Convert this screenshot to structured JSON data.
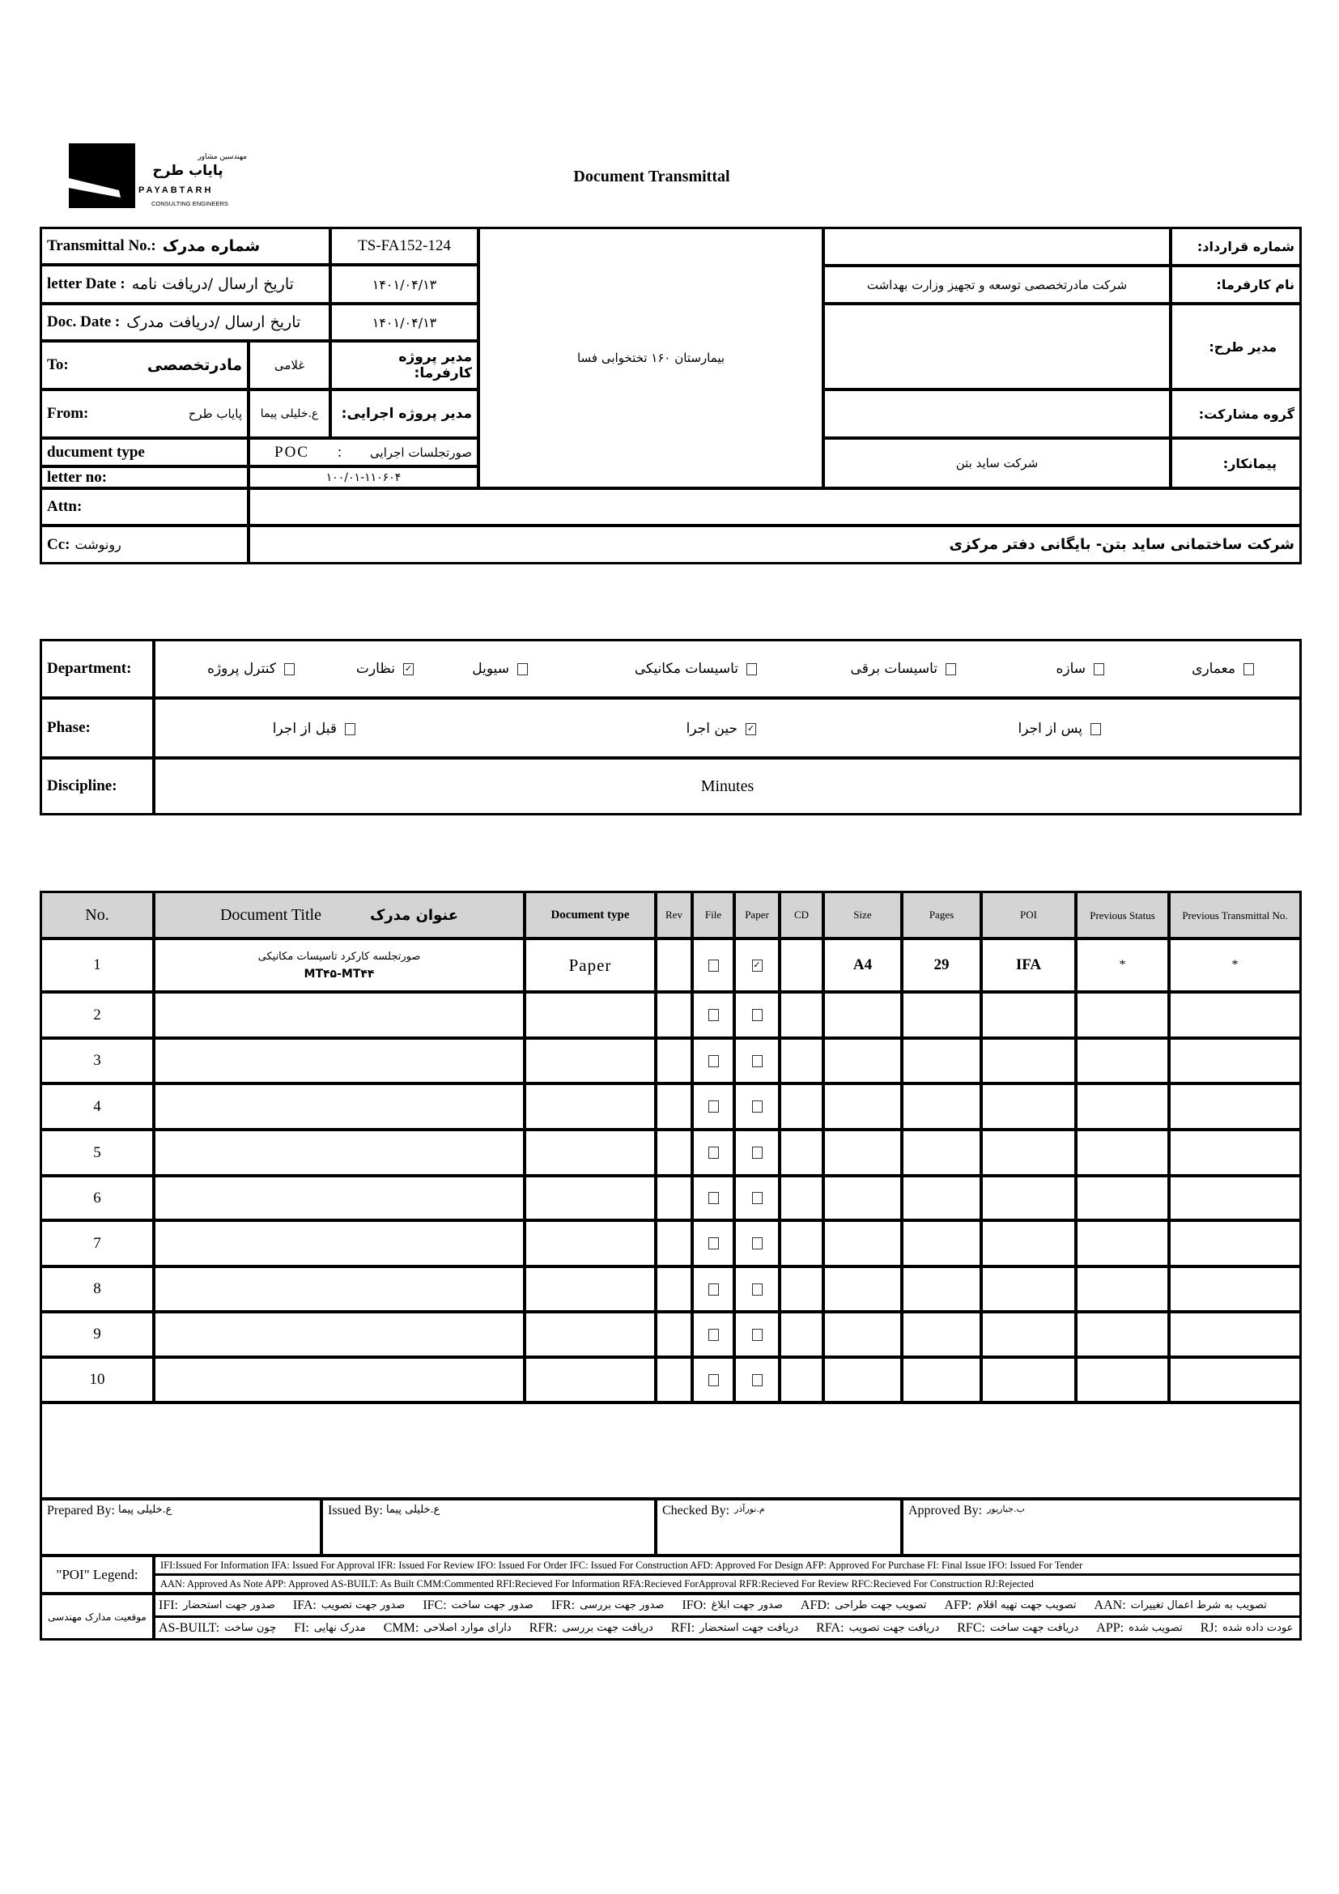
{
  "logo": {
    "line1": "مهندسین مشاور",
    "line2": "پایاب طرح",
    "brand": "PAYABTARH",
    "tagline": "CONSULTING ENGINEERS"
  },
  "title": "Document Transmittal",
  "header": {
    "transmittal_label": "Transmittal No.:",
    "transmittal_label_fa": "شماره مدرک",
    "transmittal_no": "TS-FA152-124",
    "letter_date_label": "letter Date  :",
    "letter_date_label_fa": "تاریخ ارسال /دریافت نامه",
    "letter_date": "۱۴۰۱/۰۴/۱۳",
    "doc_date_label": "Doc. Date :",
    "doc_date_label_fa": "تاریخ ارسال /دریافت مدرک",
    "doc_date": "۱۴۰۱/۰۴/۱۳",
    "to_label": "To:",
    "to_value": "مادرتخصصی",
    "client_pm": "غلامی",
    "client_pm_label": "مدیر پروژه کارفرما:",
    "from_label": "From:",
    "from_value": "پایاب طرح",
    "exec_pm": "ع.خلیلی پیما",
    "exec_pm_label": "مدیر پروژه اجرایی:",
    "doc_type_label": "ducument type",
    "doc_type_code": "POC",
    "doc_type_sep": ":",
    "doc_type_value": "صورتجلسات اجرایی",
    "letter_no_label": "letter no:",
    "letter_no": "۱۰۰/۰۱-۱۱۰۶۰۴",
    "project": "بیمارستان ۱۶۰ تختخوابی فسا",
    "contract_label": "شماره قرارداد:",
    "contract_value": "",
    "employer_label": "نام کارفرما:",
    "employer_value": "شرکت مادرتخصصی توسعه و تجهیز وزارت بهداشت",
    "plan_manager_label": "مدیر طرح:",
    "plan_manager_value": "",
    "partnership_label": "گروه مشارکت:",
    "partnership_value": "",
    "contractor_label": "پیمانکار:",
    "contractor_value": "شرکت ساید بتن",
    "attn_label": "Attn:",
    "attn_value": "",
    "cc_label": "Cc:",
    "cc_label_fa": "رونوشت",
    "cc_value": "شرکت ساختمانی ساید بتن- بایگانی دفتر مرکزی"
  },
  "classification": {
    "department_label": "Department:",
    "departments": [
      {
        "label": "معماری",
        "checked": false
      },
      {
        "label": "سازه",
        "checked": false
      },
      {
        "label": "تاسیسات برقی",
        "checked": false
      },
      {
        "label": "تاسیسات مکانیکی",
        "checked": false
      },
      {
        "label": "سیویل",
        "checked": false
      },
      {
        "label": "نظارت",
        "checked": true
      },
      {
        "label": "کنترل پروژه",
        "checked": false
      }
    ],
    "phase_label": "Phase:",
    "phases": [
      {
        "label": "پس از اجرا",
        "checked": false
      },
      {
        "label": "حین اجرا",
        "checked": true
      },
      {
        "label": "قبل از اجرا",
        "checked": false
      }
    ],
    "discipline_label": "Discipline:",
    "discipline": "Minutes"
  },
  "documents": {
    "columns": {
      "no": "No.",
      "title": "Document Title",
      "title_fa": "عنوان مدرک",
      "doc_type": "Document type",
      "rev": "Rev",
      "file": "File",
      "paper": "Paper",
      "cd": "CD",
      "size": "Size",
      "pages": "Pages",
      "poi": "POI",
      "prev_status": "Previous Status",
      "prev_transmittal": "Previous Transmittal No."
    },
    "rows": [
      {
        "no": "1",
        "title": "صورتجلسه کارکرد تاسیسات مکانیکی",
        "title2": "MT۴۵-MT۴۴",
        "doc_type": "Paper",
        "rev": "",
        "file": false,
        "paper": true,
        "cd": "",
        "size": "A4",
        "pages": "29",
        "poi": "IFA",
        "prev_status": "*",
        "prev_transmittal": "*"
      },
      {
        "no": "2",
        "file": false,
        "paper": false
      },
      {
        "no": "3",
        "file": false,
        "paper": false
      },
      {
        "no": "4",
        "file": false,
        "paper": false
      },
      {
        "no": "5",
        "file": false,
        "paper": false
      },
      {
        "no": "6",
        "file": false,
        "paper": false
      },
      {
        "no": "7",
        "file": false,
        "paper": false
      },
      {
        "no": "8",
        "file": false,
        "paper": false
      },
      {
        "no": "9",
        "file": false,
        "paper": false
      },
      {
        "no": "10",
        "file": false,
        "paper": false
      }
    ]
  },
  "signatures": {
    "prepared_label": "Prepared By:",
    "prepared_value": "ع.خلیلی پیما",
    "issued_label": "Issued By:",
    "issued_value": "ع.خلیلی پیما",
    "checked_label": "Checked By:",
    "checked_value": "م.نورآذر",
    "approved_label": "Approved By:",
    "approved_value": "ب.جبارپور"
  },
  "legend": {
    "poi_label": "\"POI\" Legend:",
    "line1": "IFI:Issued For Information  IFA: Issued For Approval  IFR: Issued For Review   IFO: Issued For Order  IFC: Issued For Construction AFD: Approved For Design AFP: Approved For Purchase  FI: Final Issue  IFO: Issued For Tender",
    "line2": "AAN: Approved As Note  APP: Approved  AS-BUILT: As Built CMM:Commented  RFI:Recieved For Information   RFA:Recieved ForApproval   RFR:Recieved For Review  RFC:Recieved For Construction  RJ:Rejected",
    "status_label": "موقعیت مدارک مهندسی",
    "fa_row1": [
      {
        "code": "IFI:",
        "text": "صدور جهت استحضار"
      },
      {
        "code": "IFA:",
        "text": "صدور جهت تصویب"
      },
      {
        "code": "IFC:",
        "text": "صدور جهت ساخت"
      },
      {
        "code": "IFR:",
        "text": "صدور جهت بررسی"
      },
      {
        "code": "IFO:",
        "text": "صدور جهت ابلاغ"
      },
      {
        "code": "AFD:",
        "text": "تصویب جهت طراحی"
      },
      {
        "code": "AFP:",
        "text": "تصویب جهت تهیه اقلام"
      },
      {
        "code": "AAN:",
        "text": "تصویب به شرط اعمال تغییرات"
      }
    ],
    "fa_row2": [
      {
        "code": "AS-BUILT:",
        "text": "چون ساخت"
      },
      {
        "code": "FI:",
        "text": "مدرک نهایی"
      },
      {
        "code": "CMM:",
        "text": "دارای موارد اصلاحی"
      },
      {
        "code": "RFR:",
        "text": "دریافت جهت بررسی"
      },
      {
        "code": "RFI:",
        "text": "دریافت جهت استحضار"
      },
      {
        "code": "RFA:",
        "text": "دریافت جهت تصویب"
      },
      {
        "code": "RFC:",
        "text": "دریافت جهت ساخت"
      },
      {
        "code": "APP:",
        "text": "تصویب شده"
      },
      {
        "code": "RJ:",
        "text": "عودت داده شده"
      }
    ]
  },
  "colors": {
    "header_fill": "#d4d4d4",
    "border": "#000000"
  }
}
